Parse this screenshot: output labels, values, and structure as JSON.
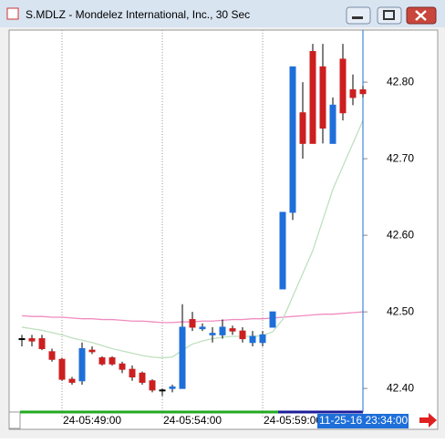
{
  "window_title": "S.MDLZ - Mondelez International, Inc., 30 Sec",
  "chart_data": {
    "type": "candlestick",
    "categories": [
      null,
      null,
      null,
      null,
      "24-05:49:00",
      null,
      null,
      null,
      null,
      null,
      null,
      null,
      null,
      null,
      "24-05:54:00",
      null,
      null,
      null,
      null,
      null,
      null,
      null,
      null,
      null,
      "24-05:59:00",
      null,
      null,
      null,
      null,
      null,
      null,
      null,
      null,
      null,
      null
    ],
    "cursor_label": "11-25-16 23:34:00",
    "open": [
      42.465,
      42.465,
      42.465,
      42.448,
      42.438,
      42.412,
      42.41,
      42.45,
      42.44,
      42.44,
      42.432,
      42.425,
      42.42,
      42.41,
      42.398,
      42.4,
      42.4,
      42.49,
      42.478,
      42.47,
      42.47,
      42.478,
      42.475,
      42.46,
      42.46,
      42.48,
      42.53,
      42.63,
      42.76,
      42.84,
      42.82,
      42.72,
      42.83,
      42.79,
      42.79
    ],
    "high": [
      42.47,
      42.47,
      42.47,
      42.452,
      42.44,
      42.415,
      42.46,
      42.455,
      42.442,
      42.442,
      42.435,
      42.43,
      42.422,
      42.412,
      42.4,
      42.405,
      42.51,
      42.5,
      42.485,
      42.48,
      42.49,
      42.482,
      42.48,
      42.475,
      42.475,
      42.5,
      42.63,
      42.82,
      42.8,
      42.85,
      42.85,
      42.78,
      42.85,
      42.81,
      42.795
    ],
    "low": [
      42.455,
      42.455,
      42.45,
      42.435,
      42.41,
      42.405,
      42.405,
      42.445,
      42.43,
      42.43,
      42.42,
      42.41,
      42.405,
      42.395,
      42.39,
      42.395,
      42.4,
      42.475,
      42.475,
      42.46,
      42.465,
      42.47,
      42.46,
      42.455,
      42.455,
      42.48,
      42.53,
      42.62,
      42.7,
      42.72,
      42.72,
      42.72,
      42.75,
      42.77,
      42.78
    ],
    "close": [
      42.465,
      42.462,
      42.452,
      42.438,
      42.412,
      42.408,
      42.452,
      42.448,
      42.432,
      42.432,
      42.425,
      42.415,
      42.408,
      42.398,
      42.397,
      42.402,
      42.48,
      42.48,
      42.48,
      42.472,
      42.48,
      42.475,
      42.465,
      42.468,
      42.47,
      42.5,
      42.63,
      42.82,
      42.72,
      42.72,
      42.74,
      42.77,
      42.76,
      42.78,
      42.785
    ],
    "up_color": "#1e6fd9",
    "down_color": "#cc1f1f",
    "overlays": [
      {
        "color": "#f08cc0",
        "values": [
          42.495,
          42.494,
          42.494,
          42.493,
          42.493,
          42.492,
          42.491,
          42.491,
          42.49,
          42.49,
          42.489,
          42.488,
          42.488,
          42.487,
          42.486,
          42.486,
          42.487,
          42.487,
          42.488,
          42.488,
          42.489,
          42.49,
          42.49,
          42.491,
          42.491,
          42.492,
          42.493,
          42.494,
          42.495,
          42.496,
          42.497,
          42.497,
          42.498,
          42.499,
          42.5
        ]
      },
      {
        "color": "#bfe0bf",
        "values": [
          42.48,
          42.478,
          42.476,
          42.473,
          42.47,
          42.466,
          42.463,
          42.46,
          42.456,
          42.452,
          42.449,
          42.446,
          42.443,
          42.441,
          42.44,
          42.441,
          42.45,
          42.458,
          42.462,
          42.465,
          42.467,
          42.468,
          42.468,
          42.468,
          42.469,
          42.474,
          42.49,
          42.52,
          42.55,
          42.58,
          42.62,
          42.66,
          42.69,
          42.72,
          42.75
        ]
      }
    ],
    "ylim": [
      42.374,
      42.868
    ],
    "yticks": [
      {
        "value": 42.4,
        "label": "42.40"
      },
      {
        "value": 42.5,
        "label": "42.50"
      },
      {
        "value": 42.6,
        "label": "42.60"
      },
      {
        "value": 42.7,
        "label": "42.70"
      },
      {
        "value": 42.8,
        "label": "42.80"
      }
    ]
  }
}
